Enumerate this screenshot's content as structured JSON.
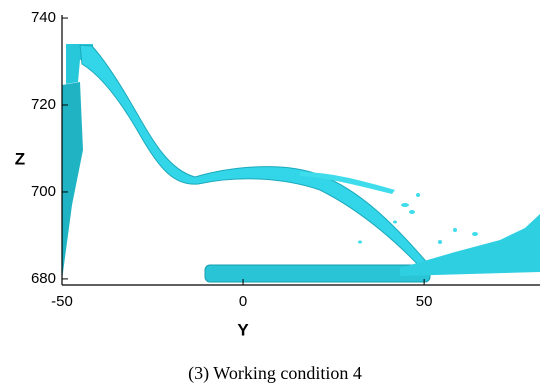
{
  "chart_data": {
    "type": "image",
    "xlabel": "Y",
    "ylabel": "Z",
    "caption": "(3) Working condition 4",
    "xlim": [
      -50,
      82
    ],
    "xticks": [
      -50,
      0,
      50
    ],
    "ylim": [
      678.6,
      740.7
    ],
    "yticks": [
      680,
      700,
      720,
      740
    ]
  }
}
